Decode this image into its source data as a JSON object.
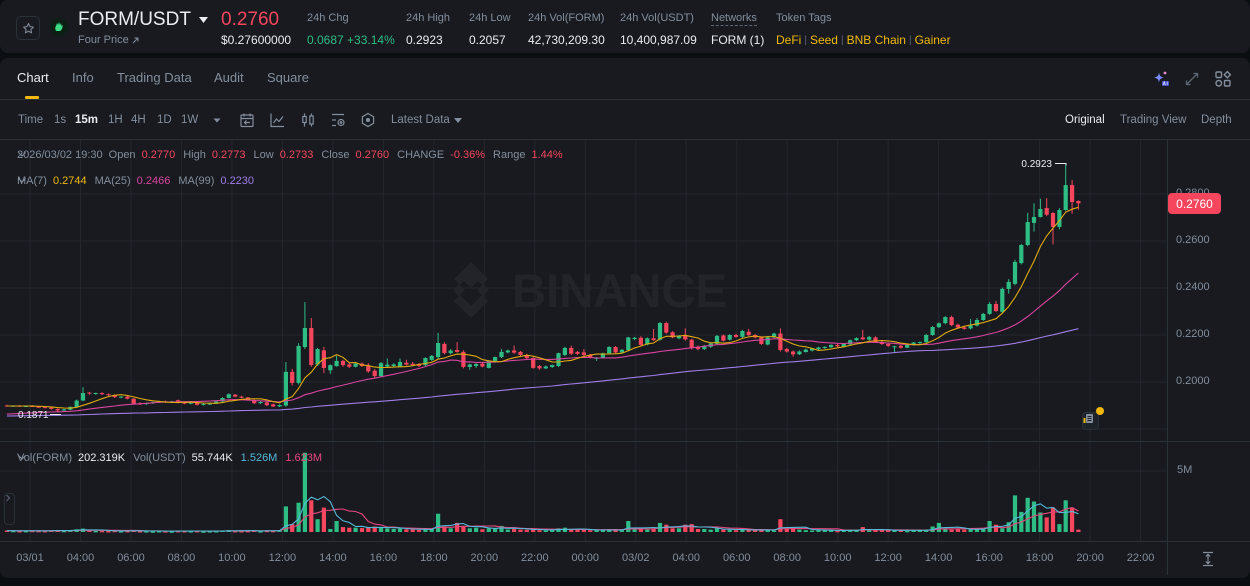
{
  "header": {
    "pair": "FORM/USDT",
    "sub_label": "Four Price",
    "last_price": "0.2760",
    "last_price_usd": "$0.27600000",
    "stats": [
      {
        "label": "24h Chg",
        "value": "0.0687 +33.14%"
      },
      {
        "label": "24h High",
        "value": "0.2923"
      },
      {
        "label": "24h Low",
        "value": "0.2057"
      },
      {
        "label": "24h Vol(FORM)",
        "value": "42,730,209.30"
      },
      {
        "label": "24h Vol(USDT)",
        "value": "10,400,987.09"
      },
      {
        "label": "Networks",
        "value": "FORM (1)"
      }
    ],
    "token_tags_label": "Token Tags",
    "token_tags": [
      "DeFi",
      "Seed",
      "BNB Chain",
      "Gainer"
    ]
  },
  "tabs": [
    {
      "label": "Chart",
      "active": true
    },
    {
      "label": "Info"
    },
    {
      "label": "Trading Data"
    },
    {
      "label": "Audit"
    },
    {
      "label": "Square"
    }
  ],
  "toolbar": {
    "time_label": "Time",
    "intervals": [
      "1s",
      "15m",
      "1H",
      "4H",
      "1D",
      "1W"
    ],
    "active_interval": "15m",
    "latest_data": "Latest Data",
    "views": [
      "Original",
      "Trading View",
      "Depth"
    ],
    "active_view": "Original"
  },
  "legend": {
    "datetime": "2026/03/02 19:30",
    "open_label": "Open",
    "open": "0.2770",
    "high_label": "High",
    "high": "0.2773",
    "low_label": "Low",
    "low": "0.2733",
    "close_label": "Close",
    "close": "0.2760",
    "change_label": "CHANGE",
    "change": "-0.36%",
    "range_label": "Range",
    "range": "1.44%",
    "ma7_label": "MA(7)",
    "ma7": "0.2744",
    "ma25_label": "MA(25)",
    "ma25": "0.2466",
    "ma99_label": "MA(99)",
    "ma99": "0.2230",
    "vol_base_label": "Vol(FORM)",
    "vol_base": "202.319K",
    "vol_quote_label": "Vol(USDT)",
    "vol_quote": "55.744K",
    "vol_ma5": "1.526M",
    "vol_ma10": "1.623M"
  },
  "chart": {
    "watermark": "BINANCE",
    "current_price_tag": "0.2760",
    "high_marker": "0.2923",
    "low_marker": "0.1871",
    "vol_axis_label": "5M"
  },
  "colors": {
    "up": "#2ebd85",
    "down": "#f6465d",
    "accent": "#f0b90b",
    "ma7": "#e0a90e",
    "ma25": "#d9449e",
    "ma99": "#a07de6",
    "vol_ma5": "#56b9d8",
    "vol_ma10": "#e8467c"
  },
  "chart_data": {
    "type": "candlestick",
    "title": "FORM/USDT 15m",
    "y_ticks": [
      "0.2800",
      "0.2600",
      "0.2400",
      "0.2200",
      "0.2000"
    ],
    "x_ticks": [
      "03/01",
      "04:00",
      "06:00",
      "08:00",
      "10:00",
      "12:00",
      "14:00",
      "16:00",
      "18:00",
      "20:00",
      "22:00",
      "00:00",
      "03/02",
      "04:00",
      "06:00",
      "08:00",
      "10:00",
      "12:00",
      "14:00",
      "16:00",
      "18:00",
      "20:00",
      "22:00"
    ],
    "vol_ticks": [
      {
        "label": "5M",
        "value": 5
      }
    ],
    "indicators": [
      "MA(7)",
      "MA(25)",
      "MA(99)"
    ],
    "candles_format": "[open, high, low, close]",
    "candles": [
      [
        0.19,
        0.1903,
        0.1895,
        0.1897
      ],
      [
        0.1897,
        0.1901,
        0.1894,
        0.1899
      ],
      [
        0.1899,
        0.1902,
        0.1895,
        0.1896
      ],
      [
        0.1896,
        0.19,
        0.1893,
        0.1898
      ],
      [
        0.1898,
        0.1902,
        0.1894,
        0.1895
      ],
      [
        0.1895,
        0.1898,
        0.189,
        0.1893
      ],
      [
        0.1893,
        0.1896,
        0.1888,
        0.1891
      ],
      [
        0.1891,
        0.1894,
        0.1882,
        0.1885
      ],
      [
        0.1885,
        0.1888,
        0.1871,
        0.1879
      ],
      [
        0.1879,
        0.1886,
        0.1875,
        0.1884
      ],
      [
        0.1882,
        0.1896,
        0.188,
        0.1894
      ],
      [
        0.1894,
        0.1925,
        0.1892,
        0.1921
      ],
      [
        0.1921,
        0.1978,
        0.1918,
        0.1953
      ],
      [
        0.1955,
        0.1958,
        0.1946,
        0.1951
      ],
      [
        0.195,
        0.1955,
        0.1946,
        0.1953
      ],
      [
        0.1953,
        0.1956,
        0.1945,
        0.1948
      ],
      [
        0.1948,
        0.1951,
        0.194,
        0.1944
      ],
      [
        0.1944,
        0.1947,
        0.1932,
        0.1936
      ],
      [
        0.1935,
        0.194,
        0.1931,
        0.1938
      ],
      [
        0.1938,
        0.1941,
        0.1926,
        0.1929
      ],
      [
        0.1929,
        0.1932,
        0.1904,
        0.1908
      ],
      [
        0.191,
        0.1914,
        0.1902,
        0.1906
      ],
      [
        0.1906,
        0.1912,
        0.1903,
        0.191
      ],
      [
        0.191,
        0.1916,
        0.1907,
        0.1914
      ],
      [
        0.1914,
        0.192,
        0.1911,
        0.1918
      ],
      [
        0.1918,
        0.1921,
        0.1912,
        0.1915
      ],
      [
        0.1915,
        0.192,
        0.1912,
        0.1918
      ],
      [
        0.1922,
        0.1925,
        0.1909,
        0.1912
      ],
      [
        0.1914,
        0.1917,
        0.1905,
        0.1908
      ],
      [
        0.1908,
        0.1914,
        0.1905,
        0.1912
      ],
      [
        0.1911,
        0.1914,
        0.19,
        0.1903
      ],
      [
        0.1903,
        0.1909,
        0.19,
        0.1907
      ],
      [
        0.1905,
        0.191,
        0.1902,
        0.1908
      ],
      [
        0.1908,
        0.192,
        0.1906,
        0.1917
      ],
      [
        0.1917,
        0.1935,
        0.1915,
        0.1932
      ],
      [
        0.1932,
        0.1952,
        0.193,
        0.1948
      ],
      [
        0.1946,
        0.1949,
        0.1935,
        0.1938
      ],
      [
        0.1938,
        0.1941,
        0.193,
        0.1933
      ],
      [
        0.1934,
        0.1936,
        0.192,
        0.1923
      ],
      [
        0.1923,
        0.1926,
        0.1906,
        0.191
      ],
      [
        0.191,
        0.1917,
        0.1907,
        0.1915
      ],
      [
        0.1913,
        0.1916,
        0.1898,
        0.1901
      ],
      [
        0.1905,
        0.1908,
        0.1893,
        0.1896
      ],
      [
        0.1896,
        0.1905,
        0.1893,
        0.1902
      ],
      [
        0.19,
        0.2085,
        0.1895,
        0.2043
      ],
      [
        0.2043,
        0.2056,
        0.1985,
        0.1996
      ],
      [
        0.1996,
        0.2165,
        0.199,
        0.2153
      ],
      [
        0.2149,
        0.234,
        0.214,
        0.223
      ],
      [
        0.223,
        0.2272,
        0.2065,
        0.2072
      ],
      [
        0.2075,
        0.2145,
        0.2068,
        0.214
      ],
      [
        0.2135,
        0.215,
        0.2038,
        0.206
      ],
      [
        0.205,
        0.2075,
        0.2035,
        0.2072
      ],
      [
        0.2068,
        0.2112,
        0.2065,
        0.209
      ],
      [
        0.209,
        0.2095,
        0.2065,
        0.2072
      ],
      [
        0.2075,
        0.208,
        0.206,
        0.2065
      ],
      [
        0.2065,
        0.2082,
        0.2062,
        0.2078
      ],
      [
        0.2078,
        0.2083,
        0.2064,
        0.2068
      ],
      [
        0.2068,
        0.208,
        0.204,
        0.2045
      ],
      [
        0.2048,
        0.2055,
        0.2018,
        0.2025
      ],
      [
        0.2025,
        0.2085,
        0.202,
        0.208
      ],
      [
        0.2066,
        0.21,
        0.2062,
        0.2074
      ],
      [
        0.2068,
        0.208,
        0.2064,
        0.2075
      ],
      [
        0.2066,
        0.21,
        0.2062,
        0.2085
      ],
      [
        0.2082,
        0.2095,
        0.207,
        0.2074
      ],
      [
        0.2078,
        0.2085,
        0.2068,
        0.2072
      ],
      [
        0.2075,
        0.208,
        0.2064,
        0.2068
      ],
      [
        0.2072,
        0.2105,
        0.2068,
        0.2102
      ],
      [
        0.2094,
        0.2115,
        0.209,
        0.2111
      ],
      [
        0.2106,
        0.2209,
        0.21,
        0.2166
      ],
      [
        0.2162,
        0.217,
        0.2118,
        0.2123
      ],
      [
        0.2123,
        0.214,
        0.2118,
        0.2134
      ],
      [
        0.2136,
        0.217,
        0.2125,
        0.2128
      ],
      [
        0.2128,
        0.2135,
        0.2058,
        0.2064
      ],
      [
        0.2064,
        0.2078,
        0.2052,
        0.2075
      ],
      [
        0.2068,
        0.208,
        0.206,
        0.2076
      ],
      [
        0.2078,
        0.2082,
        0.2062,
        0.2066
      ],
      [
        0.206,
        0.2092,
        0.2058,
        0.2089
      ],
      [
        0.209,
        0.2108,
        0.2085,
        0.2106
      ],
      [
        0.2106,
        0.214,
        0.2102,
        0.2128
      ],
      [
        0.2126,
        0.2138,
        0.2122,
        0.2134
      ],
      [
        0.2134,
        0.2155,
        0.212,
        0.2125
      ],
      [
        0.2128,
        0.2132,
        0.211,
        0.2115
      ],
      [
        0.2115,
        0.212,
        0.2098,
        0.2102
      ],
      [
        0.2102,
        0.2106,
        0.2056,
        0.206
      ],
      [
        0.2068,
        0.2072,
        0.2052,
        0.2058
      ],
      [
        0.2058,
        0.207,
        0.2055,
        0.2066
      ],
      [
        0.2064,
        0.2075,
        0.206,
        0.2072
      ],
      [
        0.2068,
        0.2125,
        0.2064,
        0.2123
      ],
      [
        0.2115,
        0.215,
        0.211,
        0.2145
      ],
      [
        0.2145,
        0.2155,
        0.2115,
        0.212
      ],
      [
        0.2128,
        0.2132,
        0.2115,
        0.212
      ],
      [
        0.2126,
        0.214,
        0.211,
        0.2115
      ],
      [
        0.2115,
        0.212,
        0.21,
        0.2106
      ],
      [
        0.21,
        0.2106,
        0.209,
        0.2103
      ],
      [
        0.2103,
        0.2125,
        0.21,
        0.2122
      ],
      [
        0.2122,
        0.2152,
        0.2118,
        0.2149
      ],
      [
        0.2149,
        0.2153,
        0.2122,
        0.2126
      ],
      [
        0.2126,
        0.214,
        0.2122,
        0.2137
      ],
      [
        0.2136,
        0.2192,
        0.2132,
        0.219
      ],
      [
        0.2183,
        0.2192,
        0.2178,
        0.2188
      ],
      [
        0.2188,
        0.2195,
        0.2155,
        0.2158
      ],
      [
        0.216,
        0.219,
        0.2156,
        0.2186
      ],
      [
        0.2186,
        0.2226,
        0.2175,
        0.2178
      ],
      [
        0.218,
        0.2255,
        0.2176,
        0.2251
      ],
      [
        0.2251,
        0.2256,
        0.2205,
        0.221
      ],
      [
        0.2212,
        0.2216,
        0.2186,
        0.219
      ],
      [
        0.2186,
        0.22,
        0.2182,
        0.2196
      ],
      [
        0.2196,
        0.2228,
        0.2176,
        0.2181
      ],
      [
        0.218,
        0.2184,
        0.2138,
        0.2144
      ],
      [
        0.215,
        0.2155,
        0.2135,
        0.214
      ],
      [
        0.214,
        0.2158,
        0.2136,
        0.2154
      ],
      [
        0.215,
        0.2168,
        0.2145,
        0.2164
      ],
      [
        0.2162,
        0.22,
        0.2158,
        0.2196
      ],
      [
        0.2198,
        0.2202,
        0.2172,
        0.2176
      ],
      [
        0.218,
        0.2204,
        0.2176,
        0.22
      ],
      [
        0.22,
        0.2205,
        0.2188,
        0.2192
      ],
      [
        0.2192,
        0.2222,
        0.2188,
        0.2217
      ],
      [
        0.2214,
        0.2226,
        0.2196,
        0.2199
      ],
      [
        0.22,
        0.2204,
        0.2186,
        0.219
      ],
      [
        0.219,
        0.2195,
        0.2158,
        0.2162
      ],
      [
        0.216,
        0.2195,
        0.2156,
        0.219
      ],
      [
        0.219,
        0.221,
        0.2186,
        0.2206
      ],
      [
        0.2206,
        0.2228,
        0.213,
        0.2136
      ],
      [
        0.214,
        0.2145,
        0.2125,
        0.213
      ],
      [
        0.213,
        0.2134,
        0.2108,
        0.2118
      ],
      [
        0.2118,
        0.2135,
        0.2115,
        0.213
      ],
      [
        0.2128,
        0.2142,
        0.2125,
        0.2138
      ],
      [
        0.2134,
        0.2145,
        0.213,
        0.2143
      ],
      [
        0.214,
        0.215,
        0.2136,
        0.2147
      ],
      [
        0.2145,
        0.2152,
        0.214,
        0.215
      ],
      [
        0.2148,
        0.216,
        0.2145,
        0.2158
      ],
      [
        0.2158,
        0.2162,
        0.2148,
        0.2152
      ],
      [
        0.215,
        0.2165,
        0.2147,
        0.2162
      ],
      [
        0.216,
        0.218,
        0.2157,
        0.2178
      ],
      [
        0.2178,
        0.219,
        0.2174,
        0.2187
      ],
      [
        0.219,
        0.2222,
        0.2178,
        0.2182
      ],
      [
        0.218,
        0.2196,
        0.2176,
        0.2192
      ],
      [
        0.219,
        0.2194,
        0.2166,
        0.217
      ],
      [
        0.217,
        0.2174,
        0.2158,
        0.2162
      ],
      [
        0.2162,
        0.2166,
        0.215,
        0.2154
      ],
      [
        0.2148,
        0.2155,
        0.2125,
        0.2152
      ],
      [
        0.2154,
        0.2158,
        0.2142,
        0.2146
      ],
      [
        0.2146,
        0.2162,
        0.2144,
        0.2158
      ],
      [
        0.2158,
        0.217,
        0.2155,
        0.2168
      ],
      [
        0.2168,
        0.2172,
        0.216,
        0.217
      ],
      [
        0.217,
        0.2205,
        0.2166,
        0.22
      ],
      [
        0.22,
        0.2238,
        0.2196,
        0.2234
      ],
      [
        0.2234,
        0.2254,
        0.223,
        0.225
      ],
      [
        0.225,
        0.228,
        0.2246,
        0.2276
      ],
      [
        0.2276,
        0.2282,
        0.2238,
        0.2242
      ],
      [
        0.2244,
        0.2248,
        0.2228,
        0.2232
      ],
      [
        0.2232,
        0.2236,
        0.2222,
        0.2226
      ],
      [
        0.2228,
        0.2268,
        0.2224,
        0.224
      ],
      [
        0.224,
        0.2272,
        0.2236,
        0.2264
      ],
      [
        0.2264,
        0.2294,
        0.226,
        0.229
      ],
      [
        0.229,
        0.234,
        0.2286,
        0.2332
      ],
      [
        0.2332,
        0.2345,
        0.2298,
        0.2302
      ],
      [
        0.2298,
        0.2402,
        0.2292,
        0.2396
      ],
      [
        0.2396,
        0.2438,
        0.2376,
        0.2426
      ],
      [
        0.2418,
        0.252,
        0.2412,
        0.2511
      ],
      [
        0.2506,
        0.2588,
        0.25,
        0.2583
      ],
      [
        0.2583,
        0.272,
        0.2578,
        0.2681
      ],
      [
        0.2677,
        0.276,
        0.264,
        0.2702
      ],
      [
        0.2702,
        0.278,
        0.27,
        0.2736
      ],
      [
        0.274,
        0.2782,
        0.2706,
        0.2712
      ],
      [
        0.2719,
        0.2724,
        0.2586,
        0.266
      ],
      [
        0.266,
        0.274,
        0.265,
        0.2732
      ],
      [
        0.2732,
        0.2923,
        0.2728,
        0.2838
      ],
      [
        0.2838,
        0.286,
        0.2716,
        0.2766
      ],
      [
        0.277,
        0.2773,
        0.2733,
        0.276
      ]
    ],
    "volumes_unit": "M",
    "volumes": [
      0.12,
      0.1,
      0.08,
      0.09,
      0.11,
      0.1,
      0.09,
      0.12,
      0.15,
      0.1,
      0.14,
      0.22,
      0.28,
      0.12,
      0.09,
      0.1,
      0.08,
      0.11,
      0.07,
      0.09,
      0.13,
      0.08,
      0.07,
      0.06,
      0.08,
      0.07,
      0.06,
      0.09,
      0.08,
      0.07,
      0.09,
      0.06,
      0.07,
      0.08,
      0.12,
      0.15,
      0.09,
      0.08,
      0.1,
      0.12,
      0.07,
      0.11,
      0.1,
      0.15,
      2.1,
      0.65,
      2.4,
      6.5,
      2.6,
      1.05,
      2.0,
      0.25,
      0.9,
      0.4,
      0.35,
      0.35,
      0.32,
      0.4,
      0.45,
      0.38,
      0.3,
      0.25,
      0.28,
      0.22,
      0.2,
      0.18,
      0.22,
      0.25,
      1.5,
      0.45,
      0.3,
      0.75,
      0.5,
      0.3,
      0.35,
      0.22,
      0.3,
      0.3,
      0.5,
      0.2,
      0.25,
      0.2,
      0.18,
      0.25,
      0.15,
      0.12,
      0.15,
      0.3,
      0.35,
      0.2,
      0.18,
      0.2,
      0.15,
      0.12,
      0.15,
      0.2,
      0.18,
      0.15,
      0.9,
      0.25,
      0.22,
      0.2,
      0.25,
      0.75,
      0.6,
      0.3,
      0.3,
      0.6,
      0.65,
      0.25,
      0.25,
      0.2,
      0.3,
      0.2,
      0.18,
      0.15,
      0.18,
      0.2,
      0.15,
      0.2,
      0.15,
      0.12,
      1.05,
      0.3,
      0.25,
      0.2,
      0.15,
      0.12,
      0.18,
      0.15,
      0.12,
      0.1,
      0.12,
      0.2,
      0.15,
      0.4,
      0.15,
      0.12,
      0.15,
      0.12,
      0.2,
      0.12,
      0.1,
      0.15,
      0.12,
      0.2,
      0.45,
      0.75,
      0.3,
      0.2,
      0.25,
      0.2,
      0.2,
      0.25,
      0.3,
      0.9,
      0.6,
      0.3,
      0.8,
      3.0,
      1.65,
      2.8,
      2.5,
      1.6,
      1.2,
      2.0,
      0.65,
      2.6,
      2.0,
      0.2
    ]
  }
}
